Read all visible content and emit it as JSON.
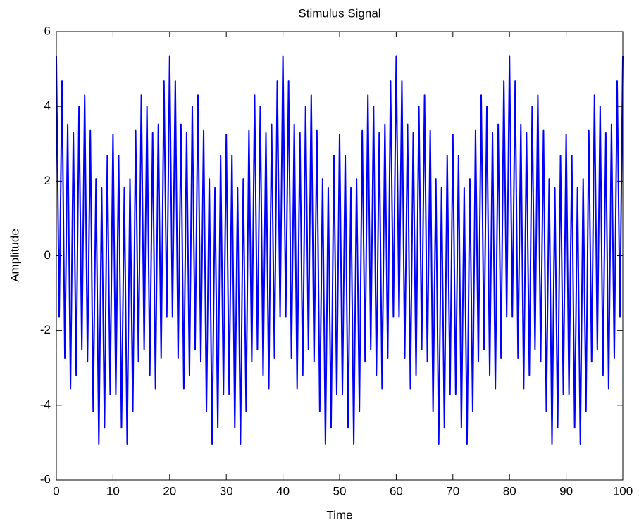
{
  "chart_data": {
    "type": "line",
    "title": "Stimulus Signal",
    "x_label": "Time",
    "y_label": "Amplitude",
    "x": [
      0,
      0.5,
      1,
      1.5,
      2,
      2.5,
      3,
      3.5,
      4,
      4.5,
      5,
      5.5,
      6,
      6.5,
      7,
      7.5,
      8,
      8.5,
      9,
      9.5,
      10,
      10.5,
      11,
      11.5,
      12,
      12.5,
      13,
      13.5,
      14,
      14.5,
      15,
      15.5,
      16,
      16.5,
      17,
      17.5,
      18,
      18.5,
      19,
      19.5,
      20,
      20.5,
      21,
      21.5,
      22,
      22.5,
      23,
      23.5,
      24,
      24.5,
      25,
      25.5,
      26,
      26.5,
      27,
      27.5,
      28,
      28.5,
      29,
      29.5,
      30,
      30.5,
      31,
      31.5,
      32,
      32.5,
      33,
      33.5,
      34,
      34.5,
      35,
      35.5,
      36,
      36.5,
      37,
      37.5,
      38,
      38.5,
      39,
      39.5,
      40,
      40.5,
      41,
      41.5,
      42,
      42.5,
      43,
      43.5,
      44,
      44.5,
      45,
      45.5,
      46,
      46.5,
      47,
      47.5,
      48,
      48.5,
      49,
      49.5,
      50,
      50.5,
      51,
      51.5,
      52,
      52.5,
      53,
      53.5,
      54,
      54.5,
      55,
      55.5,
      56,
      56.5,
      57,
      57.5,
      58,
      58.5,
      59,
      59.5,
      60,
      60.5,
      61,
      61.5,
      62,
      62.5,
      63,
      63.5,
      64,
      64.5,
      65,
      65.5,
      66,
      66.5,
      67,
      67.5,
      68,
      68.5,
      69,
      69.5,
      70,
      70.5,
      71,
      71.5,
      72,
      72.5,
      73,
      73.5,
      74,
      74.5,
      75,
      75.5,
      76,
      76.5,
      77,
      77.5,
      78,
      78.5,
      79,
      79.5,
      80,
      80.5,
      81,
      81.5,
      82,
      82.5,
      83,
      83.5,
      84,
      84.5,
      85,
      85.5,
      86,
      86.5,
      87,
      87.5,
      88,
      88.5,
      89,
      89.5,
      90,
      90.5,
      91,
      91.5,
      92,
      92.5,
      93,
      93.5,
      94,
      94.5,
      95,
      95.5,
      96,
      96.5,
      97,
      97.5,
      98,
      98.5,
      99,
      99.5,
      100
    ],
    "series": [
      {
        "color": "#0000ff",
        "values": [
          5.35,
          -1.64,
          4.68,
          -2.74,
          3.52,
          -3.56,
          3.29,
          -3.2,
          4,
          -2.51,
          4.3,
          -2.84,
          3.35,
          -4.16,
          2.06,
          -5.04,
          1.82,
          -4.61,
          2.68,
          -3.71,
          3.25,
          -3.71,
          2.68,
          -4.61,
          1.82,
          -5.04,
          2.06,
          -4.16,
          3.35,
          -2.84,
          4.3,
          -2.51,
          4,
          -3.2,
          3.29,
          -3.56,
          3.52,
          -2.74,
          4.68,
          -1.64,
          5.35,
          -1.64,
          4.68,
          -2.74,
          3.52,
          -3.56,
          3.29,
          -3.2,
          4,
          -2.51,
          4.3,
          -2.84,
          3.35,
          -4.16,
          2.06,
          -5.04,
          1.82,
          -4.61,
          2.68,
          -3.71,
          3.25,
          -3.71,
          2.68,
          -4.61,
          1.82,
          -5.04,
          2.06,
          -4.16,
          3.35,
          -2.84,
          4.3,
          -2.51,
          4,
          -3.2,
          3.29,
          -3.56,
          3.52,
          -2.74,
          4.68,
          -1.64,
          5.35,
          -1.64,
          4.68,
          -2.74,
          3.52,
          -3.56,
          3.29,
          -3.2,
          4,
          -2.51,
          4.3,
          -2.84,
          3.35,
          -4.16,
          2.06,
          -5.04,
          1.82,
          -4.61,
          2.68,
          -3.71,
          3.25,
          -3.71,
          2.68,
          -4.61,
          1.82,
          -5.04,
          2.06,
          -4.16,
          3.35,
          -2.84,
          4.3,
          -2.51,
          4,
          -3.2,
          3.29,
          -3.56,
          3.52,
          -2.74,
          4.68,
          -1.64,
          5.35,
          -1.64,
          4.68,
          -2.74,
          3.52,
          -3.56,
          3.29,
          -3.2,
          4,
          -2.51,
          4.3,
          -2.84,
          3.35,
          -4.16,
          2.06,
          -5.04,
          1.82,
          -4.61,
          2.68,
          -3.71,
          3.25,
          -3.71,
          2.68,
          -4.61,
          1.82,
          -5.04,
          2.06,
          -4.16,
          3.35,
          -2.84,
          4.3,
          -2.51,
          4,
          -3.2,
          3.29,
          -3.56,
          3.52,
          -2.74,
          4.68,
          -1.64,
          5.35,
          -1.64,
          4.68,
          -2.74,
          3.52,
          -3.56,
          3.29,
          -3.2,
          4,
          -2.51,
          4.3,
          -2.84,
          3.35,
          -4.16,
          2.06,
          -5.04,
          1.82,
          -4.61,
          2.68,
          -3.71,
          3.25,
          -3.71,
          2.68,
          -4.61,
          1.82,
          -5.04,
          2.06,
          -4.16,
          3.35,
          -2.84,
          4.3,
          -2.51,
          4,
          -3.2,
          3.29,
          -3.56,
          3.52,
          -2.74,
          4.68,
          -1.64,
          5.35
        ]
      }
    ],
    "xlim": [
      0,
      100
    ],
    "xticks": [
      0,
      10,
      20,
      30,
      40,
      50,
      60,
      70,
      80,
      90,
      100
    ],
    "ylim": [
      -6,
      6
    ],
    "yticks": [
      -6,
      -4,
      -2,
      0,
      2,
      4,
      6
    ],
    "grid": false
  }
}
